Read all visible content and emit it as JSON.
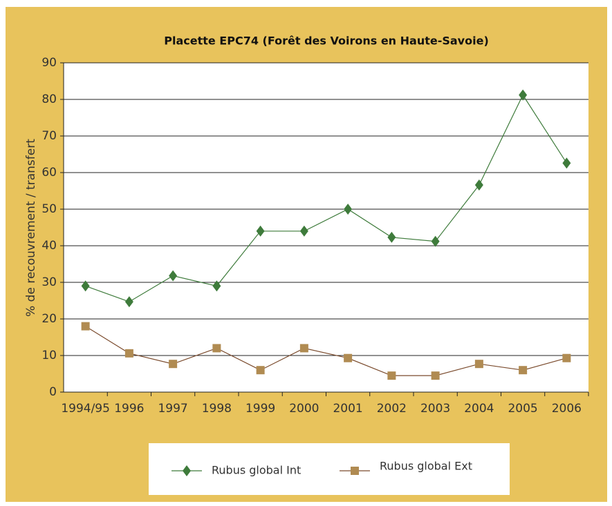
{
  "chart_data": {
    "type": "line",
    "title": "Placette EPC74 (Forêt des Voirons en Haute-Savoie)",
    "y_label": "% de recouvrement / transfert",
    "categories": [
      "1994/95",
      "1996",
      "1997",
      "1998",
      "1999",
      "2000",
      "2001",
      "2002",
      "2003",
      "2004",
      "2005",
      "2006"
    ],
    "series": [
      {
        "name": "Rubus global Int",
        "color": "#3e7b3b",
        "marker": "diamond",
        "values": [
          29,
          24.7,
          31.8,
          29,
          44,
          44,
          50,
          42.3,
          41.2,
          56.6,
          81.2,
          62.6
        ]
      },
      {
        "name": "Rubus global Ext",
        "color": "#7a4a2c",
        "marker_color": "#b08b52",
        "marker": "square",
        "values": [
          18,
          10.6,
          7.7,
          12,
          6,
          12,
          9.3,
          4.5,
          4.5,
          7.7,
          6,
          9.3
        ]
      }
    ],
    "ylim": [
      0,
      90
    ],
    "yticks": [
      0,
      10,
      20,
      30,
      40,
      50,
      60,
      70,
      80,
      90
    ],
    "grid": true,
    "legend": "bottom"
  }
}
